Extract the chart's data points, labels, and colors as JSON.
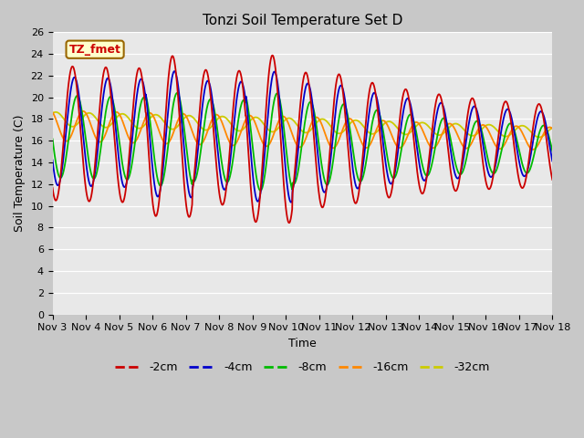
{
  "title": "Tonzi Soil Temperature Set D",
  "xlabel": "Time",
  "ylabel": "Soil Temperature (C)",
  "ylim": [
    0,
    26
  ],
  "xlim": [
    0,
    15
  ],
  "x_tick_labels": [
    "Nov 3",
    "Nov 4",
    "Nov 5",
    "Nov 6",
    "Nov 7",
    "Nov 8",
    "Nov 9",
    "Nov 10",
    "Nov 11",
    "Nov 12",
    "Nov 13",
    "Nov 14",
    "Nov 15",
    "Nov 16",
    "Nov 17",
    "Nov 18"
  ],
  "colors": {
    "-2cm": "#cc0000",
    "-4cm": "#0000cc",
    "-8cm": "#00bb00",
    "-16cm": "#ff8800",
    "-32cm": "#cccc00"
  },
  "label_box_text": "TZ_fmet",
  "label_box_facecolor": "#ffffcc",
  "label_box_edgecolor": "#996600",
  "label_text_color": "#cc0000",
  "fig_bg": "#c8c8c8",
  "ax_bg": "#e8e8e8",
  "grid_color": "#ffffff",
  "title_fontsize": 11,
  "axis_label_fontsize": 9,
  "tick_fontsize": 8,
  "legend_fontsize": 9,
  "linewidth": 1.3
}
